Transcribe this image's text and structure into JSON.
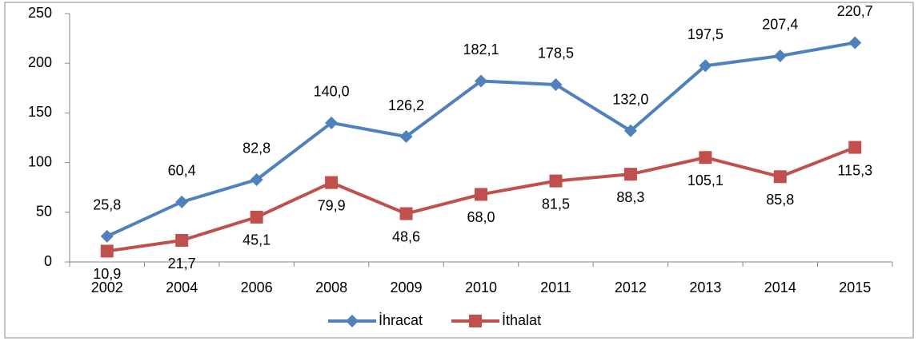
{
  "chart_data": {
    "type": "line",
    "categories": [
      "2002",
      "2004",
      "2006",
      "2008",
      "2009",
      "2010",
      "2011",
      "2012",
      "2013",
      "2014",
      "2015"
    ],
    "series": [
      {
        "name": "İhracat",
        "color": "#4f81bd",
        "marker": "diamond",
        "values": [
          25.8,
          60.4,
          82.8,
          140.0,
          126.2,
          182.1,
          178.5,
          132.0,
          197.5,
          207.4,
          220.7
        ],
        "value_labels": [
          "25,8",
          "60,4",
          "82,8",
          "140,0",
          "126,2",
          "182,1",
          "178,5",
          "132,0",
          "197,5",
          "207,4",
          "220,7"
        ]
      },
      {
        "name": "İthalat",
        "color": "#c0504d",
        "marker": "square",
        "values": [
          10.9,
          21.7,
          45.1,
          79.9,
          48.6,
          68.0,
          81.5,
          88.3,
          105.1,
          85.8,
          115.3
        ],
        "value_labels": [
          "10,9",
          "21,7",
          "45,1",
          "79,9",
          "48,6",
          "68,0",
          "81,5",
          "88,3",
          "105,1",
          "85,8",
          "115,3"
        ]
      }
    ],
    "ylim": [
      0,
      250
    ],
    "yticks": [
      0,
      50,
      100,
      150,
      200,
      250
    ],
    "legend": "bottom",
    "grid": false
  }
}
